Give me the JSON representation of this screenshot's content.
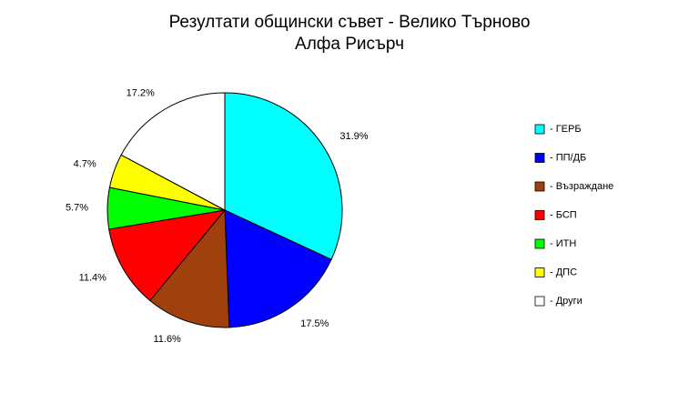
{
  "chart_data": {
    "type": "pie",
    "title": "Резултати общински съвет - Велико Търново",
    "subtitle": "Алфа Рисърч",
    "categories": [
      "- ГЕРБ",
      "- ПП/ДБ",
      "- Възраждане",
      "- БСП",
      "- ИТН",
      "- ДПС",
      "- Други"
    ],
    "values": [
      31.9,
      17.5,
      11.6,
      11.4,
      5.7,
      4.7,
      17.2
    ],
    "value_labels": [
      "31.9%",
      "17.5%",
      "11.6%",
      "11.4%",
      "5.7%",
      "4.7%",
      "17.2%"
    ],
    "colors": [
      "#00ffff",
      "#0000ff",
      "#a0410d",
      "#ff0000",
      "#00ff00",
      "#ffff00",
      "#ffffff"
    ]
  }
}
